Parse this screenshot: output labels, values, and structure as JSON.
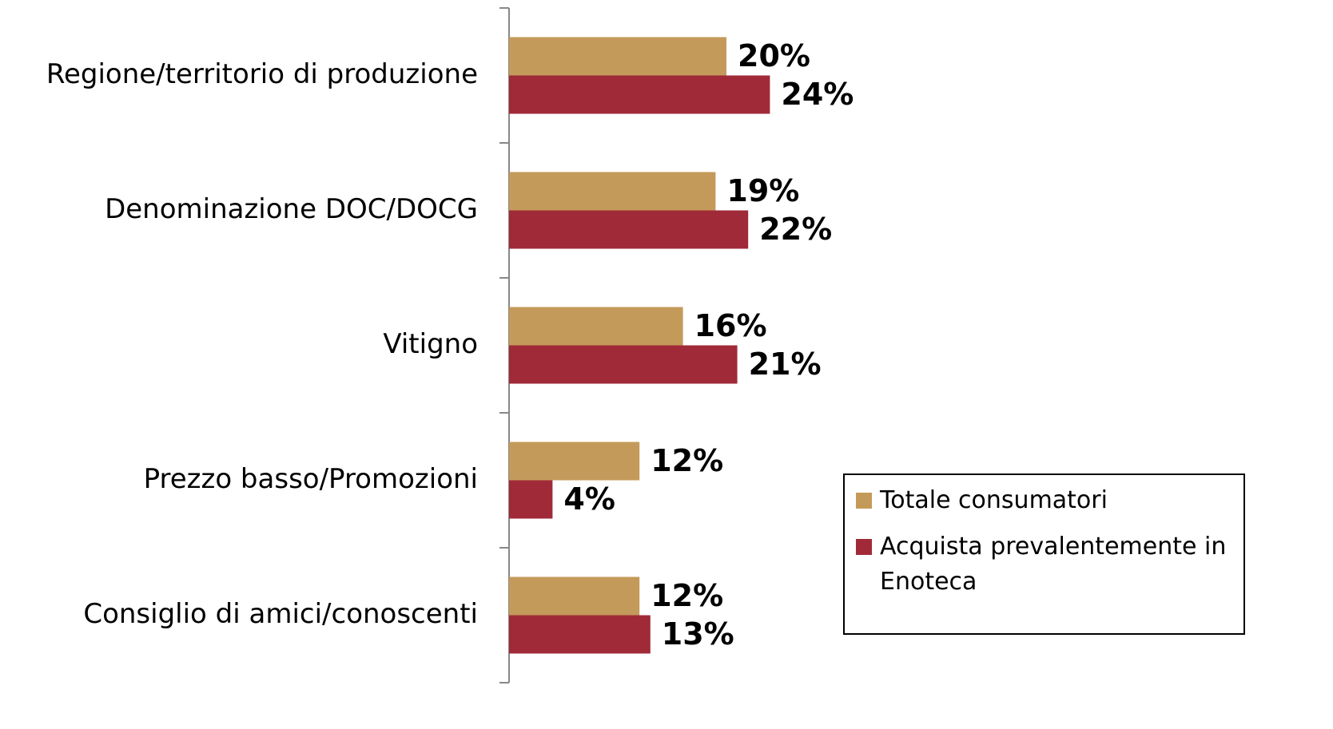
{
  "chart_data": {
    "type": "bar",
    "orientation": "horizontal",
    "categories": [
      "Regione/territorio di produzione",
      "Denominazione DOC/DOCG",
      "Vitigno",
      "Prezzo basso/Promozioni",
      "Consiglio di amici/conoscenti"
    ],
    "series": [
      {
        "name": "Totale consumatori",
        "color": "#c49a5a",
        "values": [
          20,
          19,
          16,
          12,
          12
        ],
        "value_labels": [
          "20%",
          "19%",
          "16%",
          "12%",
          "12%"
        ]
      },
      {
        "name": "Acquista prevalentemente in Enoteca",
        "color": "#a02a38",
        "values": [
          24,
          22,
          21,
          4,
          13
        ],
        "value_labels": [
          "24%",
          "22%",
          "21%",
          "4%",
          "13%"
        ]
      }
    ],
    "xlim": [
      0,
      60
    ],
    "legend": "lower right"
  }
}
